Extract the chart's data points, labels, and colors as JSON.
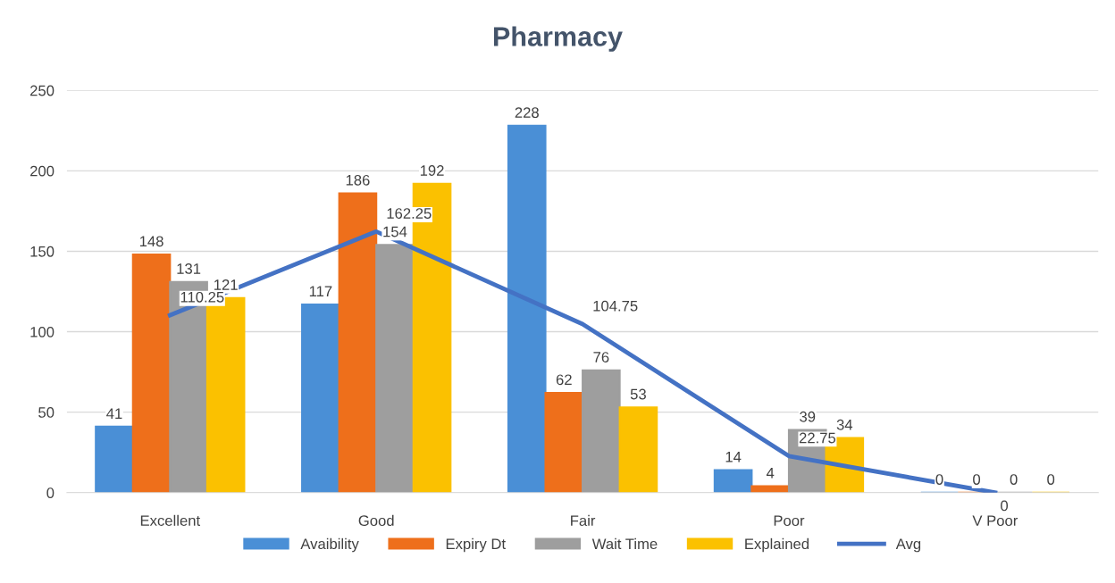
{
  "chart_data": {
    "type": "bar",
    "title": "Pharmacy",
    "categories": [
      "Excellent",
      "Good",
      "Fair",
      "Poor",
      "V Poor"
    ],
    "series": [
      {
        "name": "Avaibility",
        "color": "#4a8fd6",
        "values": [
          41,
          117,
          228,
          14,
          0
        ]
      },
      {
        "name": "Expiry Dt",
        "color": "#ee6f1b",
        "values": [
          148,
          186,
          62,
          4,
          0
        ]
      },
      {
        "name": "Wait Time",
        "color": "#9e9e9e",
        "values": [
          131,
          154,
          76,
          39,
          0
        ]
      },
      {
        "name": "Explained",
        "color": "#fbc100",
        "values": [
          121,
          192,
          53,
          34,
          0
        ]
      },
      {
        "name": "Avg",
        "type": "line",
        "color": "#4472c4",
        "values": [
          110.25,
          162.25,
          104.75,
          22.75,
          0
        ]
      }
    ],
    "ylim": [
      0,
      250
    ],
    "yticks": [
      0,
      50,
      100,
      150,
      200,
      250
    ],
    "grid": "y",
    "legend": "bottom",
    "data_labels": true,
    "marker": "none",
    "line_style": "solid"
  }
}
